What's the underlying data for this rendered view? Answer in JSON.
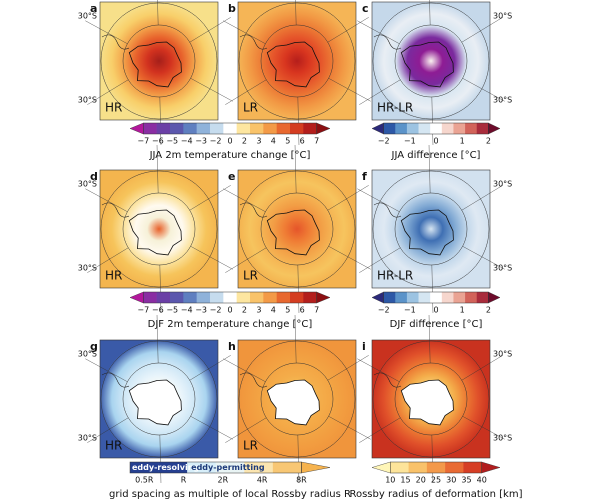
{
  "panels": [
    {
      "letter": "a",
      "label": "HR",
      "lat_left": [
        "30°S",
        "30°S"
      ]
    },
    {
      "letter": "b",
      "label": "LR"
    },
    {
      "letter": "c",
      "label": "HR-LR",
      "lat_right": [
        "30°S",
        "30°S"
      ]
    },
    {
      "letter": "d",
      "label": "HR",
      "lat_left": [
        "30°S",
        "30°S"
      ]
    },
    {
      "letter": "e",
      "label": "LR"
    },
    {
      "letter": "f",
      "label": "HR-LR",
      "lat_right": [
        "30°S",
        "30°S"
      ]
    },
    {
      "letter": "g",
      "label": "HR",
      "lat_left": [
        "30°S",
        "30°S"
      ]
    },
    {
      "letter": "h",
      "label": "LR"
    },
    {
      "letter": "i",
      "lat_right": [
        "30°S",
        "30°S"
      ]
    }
  ],
  "colorbars": [
    {
      "label": "JJA 2m temperature change [°C]",
      "ticks": [
        "−7",
        "−6",
        "−5",
        "−4",
        "−3",
        "−2",
        "0",
        "2",
        "3",
        "4",
        "5",
        "6",
        "7"
      ]
    },
    {
      "label": "JJA difference [°C]",
      "ticks": [
        "−2",
        "−1",
        "0",
        "1",
        "2"
      ]
    },
    {
      "label": "DJF 2m temperature change [°C]",
      "ticks": [
        "−7",
        "−6",
        "−5",
        "−4",
        "−3",
        "−2",
        "0",
        "2",
        "3",
        "4",
        "5",
        "6",
        "7"
      ]
    },
    {
      "label": "DJF difference [°C]",
      "ticks": [
        "−2",
        "−1",
        "0",
        "1",
        "2"
      ]
    },
    {
      "label": "grid spacing as multiple of local Rossby radius R",
      "ticks": [
        "0.5R",
        "R",
        "2R",
        "4R",
        "8R"
      ],
      "segments": [
        "eddy-resolving",
        "eddy-permitting"
      ]
    },
    {
      "label": "Rossby radius of deformation [km]",
      "ticks": [
        "10",
        "15",
        "20",
        "25",
        "30",
        "35",
        "40"
      ]
    }
  ]
}
